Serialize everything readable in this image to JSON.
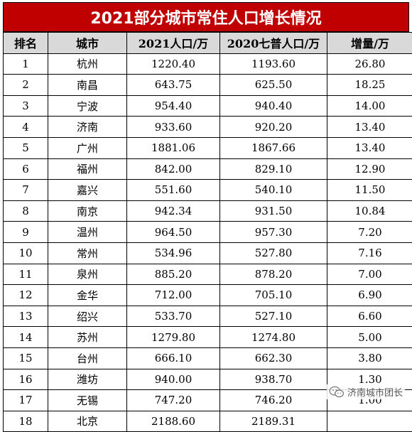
{
  "title": "2021部分城市常住人口增长情况",
  "headers": {
    "rank": "排名",
    "city": "城市",
    "pop2021": "2021人口/万",
    "pop2020": "2020七普人口/万",
    "increase": "增量/万"
  },
  "rows": [
    {
      "rank": "1",
      "city": "杭州",
      "pop2021": "1220.40",
      "pop2020": "1193.60",
      "increase": "26.80"
    },
    {
      "rank": "2",
      "city": "南昌",
      "pop2021": "643.75",
      "pop2020": "625.50",
      "increase": "18.25"
    },
    {
      "rank": "3",
      "city": "宁波",
      "pop2021": "954.40",
      "pop2020": "940.40",
      "increase": "14.00"
    },
    {
      "rank": "4",
      "city": "济南",
      "pop2021": "933.60",
      "pop2020": "920.20",
      "increase": "13.40"
    },
    {
      "rank": "5",
      "city": "广州",
      "pop2021": "1881.06",
      "pop2020": "1867.66",
      "increase": "13.40"
    },
    {
      "rank": "6",
      "city": "福州",
      "pop2021": "842.00",
      "pop2020": "829.10",
      "increase": "12.90"
    },
    {
      "rank": "7",
      "city": "嘉兴",
      "pop2021": "551.60",
      "pop2020": "540.10",
      "increase": "11.50"
    },
    {
      "rank": "8",
      "city": "南京",
      "pop2021": "942.34",
      "pop2020": "931.50",
      "increase": "10.84"
    },
    {
      "rank": "9",
      "city": "温州",
      "pop2021": "964.50",
      "pop2020": "957.30",
      "increase": "7.20"
    },
    {
      "rank": "10",
      "city": "常州",
      "pop2021": "534.96",
      "pop2020": "527.80",
      "increase": "7.16"
    },
    {
      "rank": "11",
      "city": "泉州",
      "pop2021": "885.20",
      "pop2020": "878.20",
      "increase": "7.00"
    },
    {
      "rank": "12",
      "city": "金华",
      "pop2021": "712.00",
      "pop2020": "705.10",
      "increase": "6.90"
    },
    {
      "rank": "13",
      "city": "绍兴",
      "pop2021": "533.70",
      "pop2020": "527.10",
      "increase": "6.60"
    },
    {
      "rank": "14",
      "city": "苏州",
      "pop2021": "1279.80",
      "pop2020": "1274.80",
      "increase": "5.00"
    },
    {
      "rank": "15",
      "city": "台州",
      "pop2021": "666.10",
      "pop2020": "662.30",
      "increase": "3.80"
    },
    {
      "rank": "16",
      "city": "潍坊",
      "pop2021": "940.00",
      "pop2020": "938.70",
      "increase": "1.30"
    },
    {
      "rank": "17",
      "city": "无锡",
      "pop2021": "747.20",
      "pop2020": "746.20",
      "increase": "1.00"
    },
    {
      "rank": "18",
      "city": "北京",
      "pop2021": "2188.60",
      "pop2020": "2189.31",
      "increase": ""
    }
  ],
  "watermark": {
    "text": "济南城市团长",
    "icon": "wechat-icon"
  },
  "colors": {
    "title_bg": "#c00000",
    "header_bg": "#d9d9d9"
  }
}
